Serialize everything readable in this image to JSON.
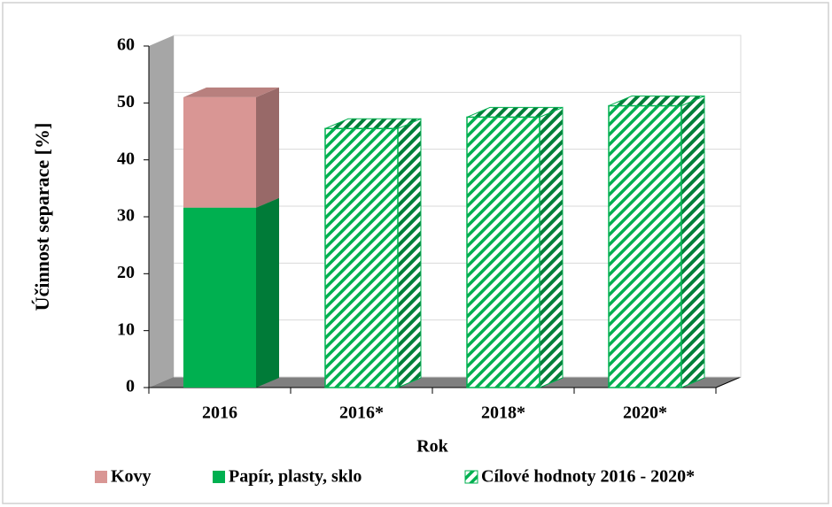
{
  "chart_data": {
    "type": "bar3d_stacked",
    "y_label": "Účinnost separace [%]",
    "x_label": "Rok",
    "categories": [
      "2016",
      "2016*",
      "2018*",
      "2020*"
    ],
    "series": [
      {
        "name": "Kovy",
        "color": "#d99694",
        "values": [
          19.4,
          null,
          null,
          null
        ]
      },
      {
        "name": "Papír, plasty, sklo",
        "color": "#00b050",
        "values": [
          31.6,
          null,
          null,
          null
        ]
      },
      {
        "name": "Cílové hodnoty 2016 - 2020*",
        "color": "#00b050",
        "hatched": true,
        "values": [
          null,
          45.5,
          47.5,
          49.5
        ]
      }
    ],
    "ylim": [
      0,
      60
    ],
    "yticks": [
      0,
      10,
      20,
      30,
      40,
      50,
      60
    ],
    "grid": true
  }
}
